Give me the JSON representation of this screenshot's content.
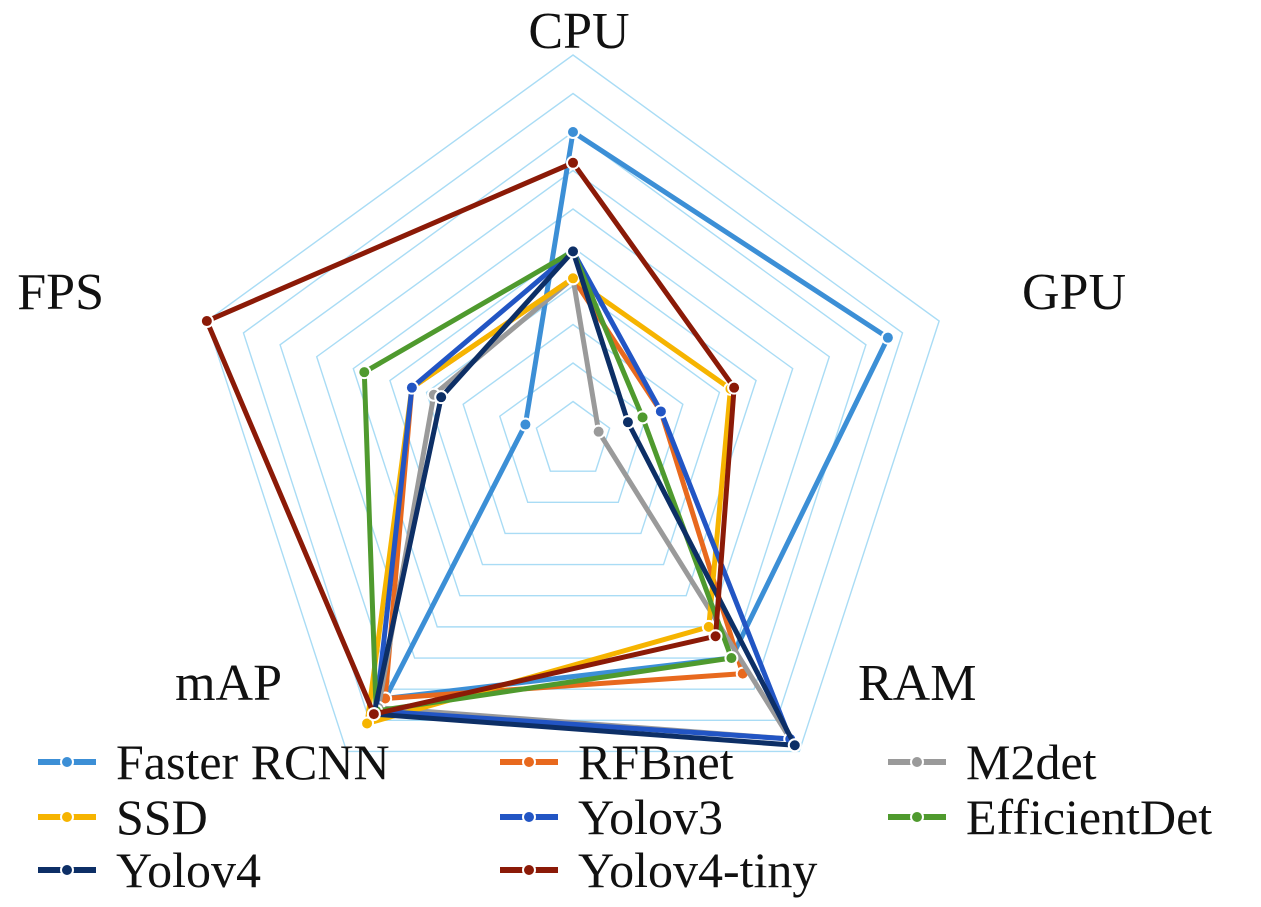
{
  "chart_data": {
    "type": "radar",
    "axes": [
      "CPU",
      "GPU",
      "RAM",
      "mAP",
      "FPS"
    ],
    "range": [
      0,
      10
    ],
    "grid": true,
    "grid_rings": 10,
    "legend_position": "bottom",
    "series": [
      {
        "name": "Faster RCNN",
        "color": "#3c8fd6",
        "values": [
          8.0,
          8.6,
          7.0,
          8.3,
          1.3
        ]
      },
      {
        "name": "RFBnet",
        "color": "#e8691e",
        "values": [
          4.2,
          2.4,
          7.5,
          8.3,
          4.4
        ]
      },
      {
        "name": "M2det",
        "color": "#9a9a9a",
        "values": [
          4.2,
          0.7,
          9.6,
          8.6,
          3.8
        ]
      },
      {
        "name": "SSD",
        "color": "#f6b400",
        "values": [
          4.2,
          4.3,
          6.0,
          9.1,
          4.4
        ]
      },
      {
        "name": "Yolov3",
        "color": "#2255c4",
        "values": [
          4.9,
          2.4,
          9.6,
          8.7,
          4.4
        ]
      },
      {
        "name": "EfficientDet",
        "color": "#4f9a2e",
        "values": [
          4.9,
          1.9,
          7.0,
          8.7,
          5.7
        ]
      },
      {
        "name": "Yolov4",
        "color": "#0d2f66",
        "values": [
          4.9,
          1.5,
          9.8,
          8.8,
          3.6
        ]
      },
      {
        "name": "Yolov4-tiny",
        "color": "#8b1a07",
        "values": [
          7.2,
          4.4,
          6.3,
          8.8,
          10.0
        ]
      }
    ]
  }
}
